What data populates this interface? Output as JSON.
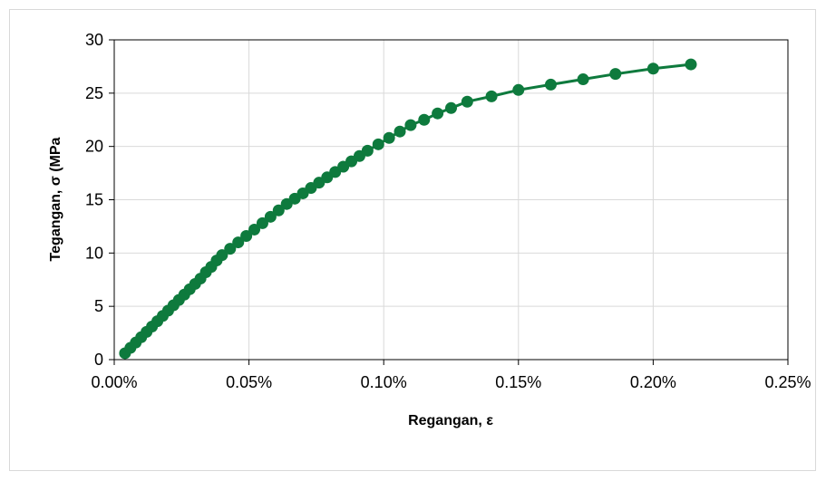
{
  "chart_data": {
    "type": "line",
    "title": "",
    "xlabel": "Regangan, ε",
    "ylabel": "Tegangan, σ (MPa",
    "xlim": [
      0,
      0.25
    ],
    "ylim": [
      0,
      30
    ],
    "x_ticks": [
      "0.00%",
      "0.05%",
      "0.10%",
      "0.15%",
      "0.20%",
      "0.25%"
    ],
    "y_ticks": [
      "0",
      "5",
      "10",
      "15",
      "20",
      "25",
      "30"
    ],
    "x_tick_values": [
      0,
      0.05,
      0.1,
      0.15,
      0.2,
      0.25
    ],
    "y_tick_values": [
      0,
      5,
      10,
      15,
      20,
      25,
      30
    ],
    "grid": true,
    "legend": "none",
    "series": [
      {
        "color": "#0e7a3d",
        "marker": "circle",
        "x": [
          0.004,
          0.006,
          0.008,
          0.01,
          0.012,
          0.014,
          0.016,
          0.018,
          0.02,
          0.022,
          0.024,
          0.026,
          0.028,
          0.03,
          0.032,
          0.034,
          0.036,
          0.038,
          0.04,
          0.043,
          0.046,
          0.049,
          0.052,
          0.055,
          0.058,
          0.061,
          0.064,
          0.067,
          0.07,
          0.073,
          0.076,
          0.079,
          0.082,
          0.085,
          0.088,
          0.091,
          0.094,
          0.098,
          0.102,
          0.106,
          0.11,
          0.115,
          0.12,
          0.125,
          0.131,
          0.14,
          0.15,
          0.162,
          0.174,
          0.186,
          0.2,
          0.214
        ],
        "y": [
          0.6,
          1.1,
          1.6,
          2.1,
          2.6,
          3.1,
          3.6,
          4.1,
          4.6,
          5.1,
          5.6,
          6.1,
          6.6,
          7.1,
          7.6,
          8.2,
          8.7,
          9.3,
          9.8,
          10.4,
          11.0,
          11.6,
          12.2,
          12.8,
          13.4,
          14.0,
          14.6,
          15.1,
          15.6,
          16.1,
          16.6,
          17.1,
          17.6,
          18.1,
          18.6,
          19.1,
          19.6,
          20.2,
          20.8,
          21.4,
          22.0,
          22.5,
          23.1,
          23.6,
          24.2,
          24.7,
          25.3,
          25.8,
          26.3,
          26.8,
          27.3,
          27.7
        ]
      }
    ]
  }
}
